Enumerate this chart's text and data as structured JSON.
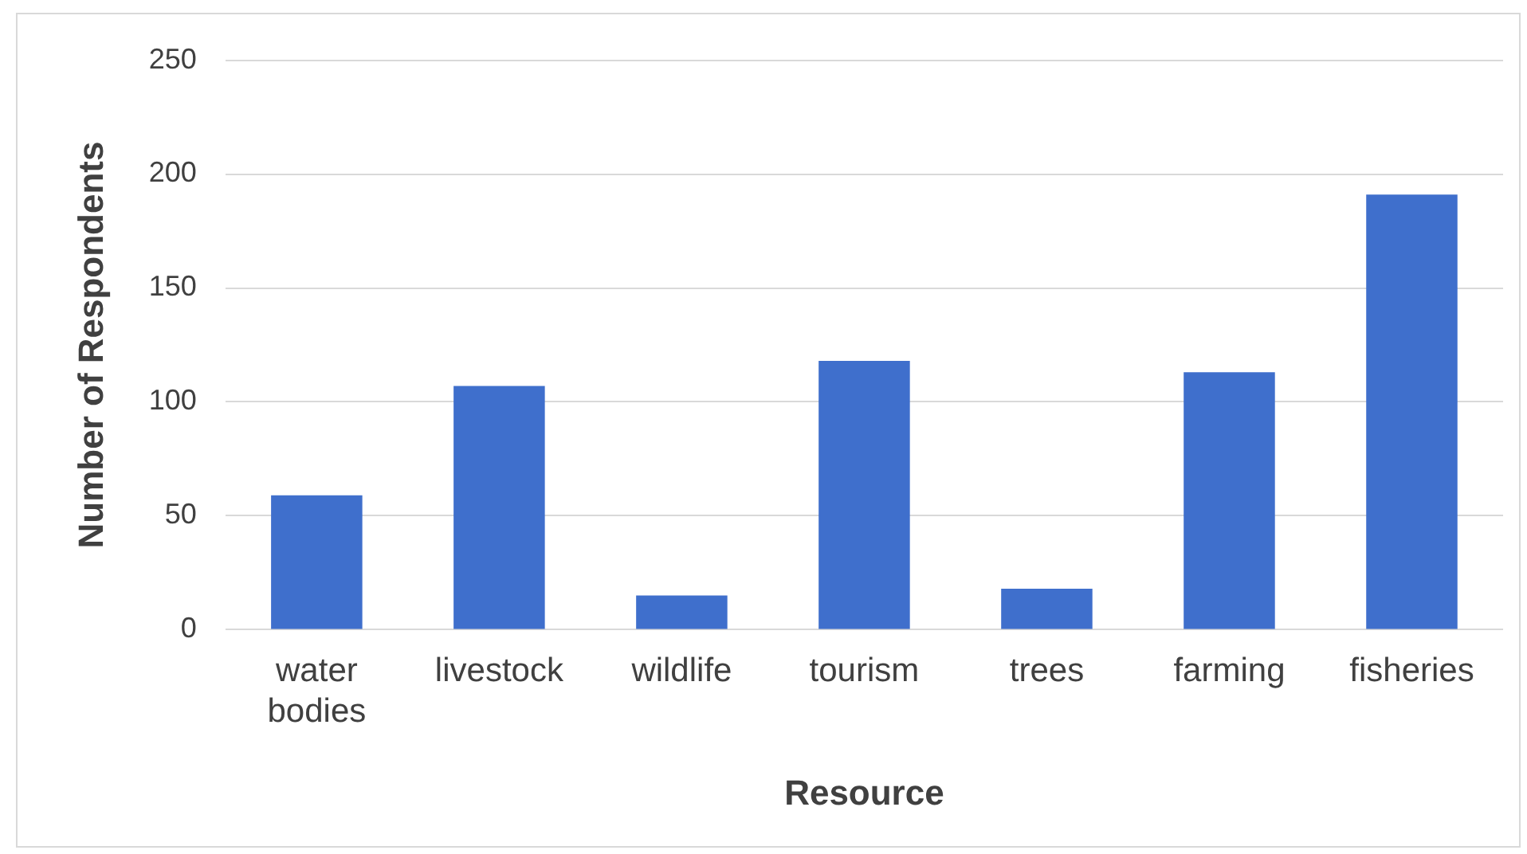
{
  "chart_data": {
    "type": "bar",
    "xlabel": "Resource",
    "ylabel": "Number of Respondents",
    "categories": [
      "water bodies",
      "livestock",
      "wildlife",
      "tourism",
      "trees",
      "farming",
      "fisheries"
    ],
    "values": [
      59,
      107,
      15,
      118,
      18,
      113,
      191
    ],
    "color": "#3f6fcc",
    "ylim": [
      0,
      250
    ],
    "yticks": [
      0,
      50,
      100,
      150,
      200,
      250
    ],
    "grid": "y"
  }
}
